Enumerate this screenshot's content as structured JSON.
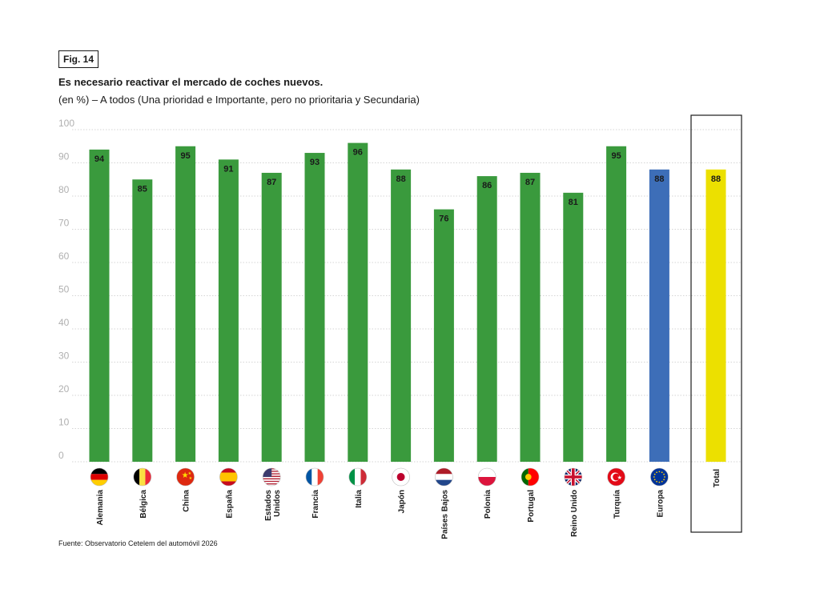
{
  "figure": {
    "label": "Fig. 14",
    "title": "Es necesario reactivar el mercado de coches nuevos.",
    "subtitle": "(en %) – A todos (Una prioridad e Importante, pero no prioritaria y Secundaria)",
    "source": "Fuente: Observatorio Cetelem del automóvil 2026"
  },
  "colors": {
    "country": "#3a9a3d",
    "europe": "#3d6eb8",
    "total": "#ece000",
    "grid": "#c8c8c8",
    "axis_text": "#b0b0b0"
  },
  "chart_data": {
    "type": "bar",
    "title": "Es necesario reactivar el mercado de coches nuevos.",
    "ylabel": "(en %)",
    "ylim": [
      0,
      100
    ],
    "yticks": [
      0,
      10,
      20,
      30,
      40,
      50,
      60,
      70,
      80,
      90,
      100
    ],
    "grid": true,
    "bars": [
      {
        "label": "Alemania",
        "value": 94,
        "kind": "country",
        "flag": "germany-flag-icon"
      },
      {
        "label": "Bélgica",
        "value": 85,
        "kind": "country",
        "flag": "belgium-flag-icon"
      },
      {
        "label": "China",
        "value": 95,
        "kind": "country",
        "flag": "china-flag-icon"
      },
      {
        "label": "España",
        "value": 91,
        "kind": "country",
        "flag": "spain-flag-icon"
      },
      {
        "label": "Estados Unidos",
        "value": 87,
        "kind": "country",
        "flag": "usa-flag-icon"
      },
      {
        "label": "Francia",
        "value": 93,
        "kind": "country",
        "flag": "france-flag-icon"
      },
      {
        "label": "Italia",
        "value": 96,
        "kind": "country",
        "flag": "italy-flag-icon"
      },
      {
        "label": "Japón",
        "value": 88,
        "kind": "country",
        "flag": "japan-flag-icon"
      },
      {
        "label": "Países Bajos",
        "value": 76,
        "kind": "country",
        "flag": "netherlands-flag-icon"
      },
      {
        "label": "Polonia",
        "value": 86,
        "kind": "country",
        "flag": "poland-flag-icon"
      },
      {
        "label": "Portugal",
        "value": 87,
        "kind": "country",
        "flag": "portugal-flag-icon"
      },
      {
        "label": "Reino Unido",
        "value": 81,
        "kind": "country",
        "flag": "uk-flag-icon"
      },
      {
        "label": "Turquía",
        "value": 95,
        "kind": "country",
        "flag": "turkey-flag-icon"
      },
      {
        "label": "Europa",
        "value": 88,
        "kind": "europe",
        "flag": "eu-flag-icon"
      },
      {
        "label": "Total",
        "value": 88,
        "kind": "total",
        "flag": ""
      }
    ]
  }
}
